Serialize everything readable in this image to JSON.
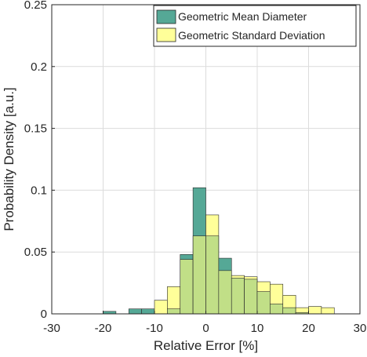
{
  "chart_data": {
    "type": "histogram",
    "title": "",
    "xlabel": "Relative Error [%]",
    "ylabel": "Probability Density [a.u.]",
    "xlim": [
      -30,
      30
    ],
    "ylim": [
      0,
      0.25
    ],
    "xticks": [
      -30,
      -20,
      -10,
      0,
      10,
      20,
      30
    ],
    "yticks": [
      0,
      0.05,
      0.1,
      0.15,
      0.2,
      0.25
    ],
    "xtick_labels": [
      "-30",
      "-20",
      "-10",
      "0",
      "10",
      "20",
      "30"
    ],
    "ytick_labels": [
      "0",
      "0.05",
      "0.1",
      "0.15",
      "0.2",
      "0.25"
    ],
    "grid": true,
    "legend_position": "top-right",
    "bin_width": 2.5,
    "bin_edges": [
      -20,
      -17.5,
      -15,
      -12.5,
      -10,
      -7.5,
      -5,
      -2.5,
      0,
      2.5,
      5,
      7.5,
      10,
      12.5,
      15,
      17.5,
      20,
      22.5,
      25
    ],
    "series": [
      {
        "name": "Geometric Mean Diameter",
        "color": "#55a896",
        "values": [
          0.002,
          0,
          0.004,
          0.004,
          0,
          0.004,
          0.048,
          0.102,
          0.063,
          0.045,
          0.029,
          0.028,
          0.018,
          0.008,
          0.005,
          0.001,
          0,
          0
        ]
      },
      {
        "name": "Geometric Standard Deviation",
        "color": "#ffff99",
        "values": [
          0,
          0,
          0,
          0,
          0.011,
          0.022,
          0.044,
          0.063,
          0.08,
          0.035,
          0.031,
          0.03,
          0.026,
          0.024,
          0.015,
          0.005,
          0.006,
          0.005
        ]
      }
    ],
    "overlap_color": "#c1df87"
  }
}
